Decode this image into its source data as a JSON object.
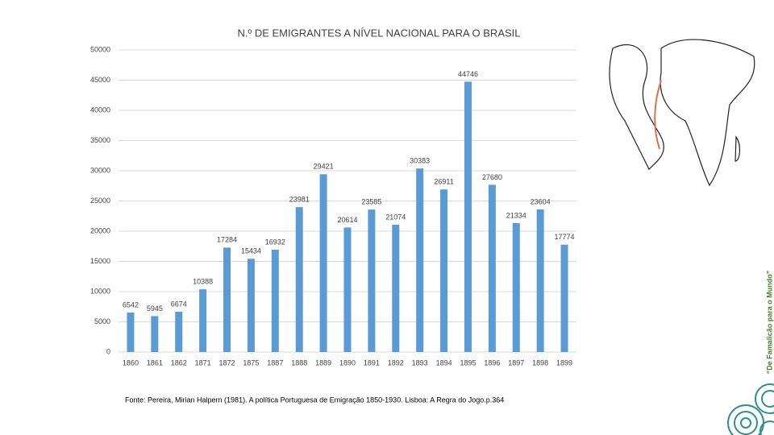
{
  "chart_data": {
    "type": "bar",
    "title": "N.º DE EMIGRANTES A NÍVEL NACIONAL PARA O BRASIL",
    "categories": [
      "1860",
      "1861",
      "1862",
      "1871",
      "1872",
      "1875",
      "1887",
      "1888",
      "1889",
      "1890",
      "1891",
      "1892",
      "1893",
      "1894",
      "1895",
      "1896",
      "1897",
      "1898",
      "1899"
    ],
    "values": [
      6542,
      5945,
      6674,
      10388,
      17284,
      15434,
      16932,
      23981,
      29421,
      20614,
      23585,
      21074,
      30383,
      26911,
      44746,
      27680,
      21334,
      23604,
      17774
    ],
    "color": "#5b9bd5",
    "ylim": [
      0,
      50000
    ],
    "yticks": [
      0,
      5000,
      10000,
      15000,
      20000,
      25000,
      30000,
      35000,
      40000,
      45000,
      50000
    ],
    "grid": true
  },
  "footnote": "Fonte: Pereira, Mirian Halpern (1981). A política Portuguesa de Emigração 1850-1930. Lisboa: A Regra do Jogo.p.364",
  "side_label": "“De Famalicão para o Mundo”"
}
